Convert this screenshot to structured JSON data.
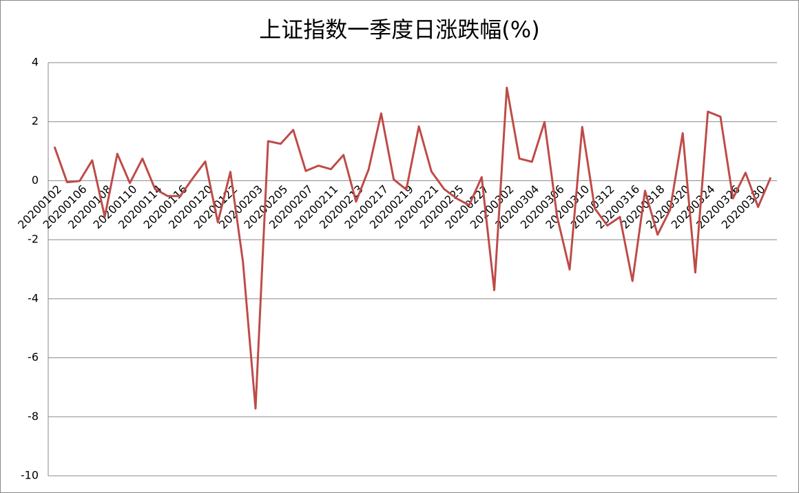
{
  "chart_data": {
    "type": "line",
    "title": "上证指数一季度日涨跌幅(%)",
    "categories": [
      "20200102",
      null,
      "20200106",
      null,
      "20200108",
      null,
      "20200110",
      null,
      "20200114",
      null,
      "20200116",
      null,
      "20200120",
      null,
      "20200122",
      null,
      "20200203",
      null,
      "20200205",
      null,
      "20200207",
      null,
      "20200211",
      null,
      "20200213",
      null,
      "20200217",
      null,
      "20200219",
      null,
      "20200221",
      null,
      "20200225",
      null,
      "20200227",
      null,
      "20200302",
      null,
      "20200304",
      null,
      "20200306",
      null,
      "20200310",
      null,
      "20200312",
      null,
      "20200316",
      null,
      "20200318",
      null,
      "20200320",
      null,
      "20200324",
      null,
      "20200326",
      null,
      "20200330",
      null
    ],
    "series": [
      {
        "color": "#be4b48",
        "values": [
          1.15,
          -0.05,
          -0.01,
          0.69,
          -1.22,
          0.91,
          -0.08,
          0.75,
          -0.28,
          -0.52,
          -0.52,
          0.08,
          0.65,
          -1.41,
          0.3,
          -2.75,
          -7.72,
          1.34,
          1.25,
          1.72,
          0.33,
          0.51,
          0.39,
          0.87,
          -0.71,
          0.38,
          2.28,
          0.04,
          -0.3,
          1.84,
          0.31,
          -0.28,
          -0.6,
          -0.83,
          0.12,
          -3.71,
          3.15,
          0.75,
          0.64,
          1.99,
          -1.21,
          -3.01,
          1.82,
          -0.94,
          -1.52,
          -1.23,
          -3.4,
          -0.34,
          -1.83,
          -0.98,
          1.61,
          -3.11,
          2.34,
          2.17,
          -0.6,
          0.27,
          -0.89,
          0.11
        ]
      }
    ],
    "ylim": [
      -10,
      4
    ],
    "yticks": [
      -10,
      -8,
      -6,
      -4,
      -2,
      0,
      2,
      4
    ],
    "grid": true
  }
}
